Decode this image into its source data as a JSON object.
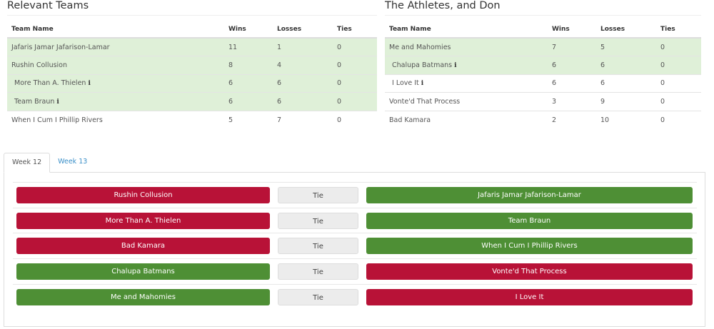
{
  "left": {
    "title": "Relevant Teams",
    "headers": [
      "Team Name",
      "Wins",
      "Losses",
      "Ties"
    ],
    "rows": [
      {
        "name": "Jafaris Jamar Jafarison-Lamar",
        "w": "11",
        "l": "1",
        "t": "0",
        "hl": true,
        "info": false
      },
      {
        "name": "Rushin Collusion",
        "w": "8",
        "l": "4",
        "t": "0",
        "hl": true,
        "info": false
      },
      {
        "name": "More Than A. Thielen",
        "w": "6",
        "l": "6",
        "t": "0",
        "hl": true,
        "info": true
      },
      {
        "name": "Team Braun",
        "w": "6",
        "l": "6",
        "t": "0",
        "hl": true,
        "info": true
      },
      {
        "name": "When I Cum I Phillip Rivers",
        "w": "5",
        "l": "7",
        "t": "0",
        "hl": false,
        "info": false
      }
    ]
  },
  "right": {
    "title": "The Athletes, and Don",
    "headers": [
      "Team Name",
      "Wins",
      "Losses",
      "Ties"
    ],
    "rows": [
      {
        "name": "Me and Mahomies",
        "w": "7",
        "l": "5",
        "t": "0",
        "hl": true,
        "info": false
      },
      {
        "name": "Chalupa Batmans",
        "w": "6",
        "l": "6",
        "t": "0",
        "hl": true,
        "info": true
      },
      {
        "name": "I Love It",
        "w": "6",
        "l": "6",
        "t": "0",
        "hl": false,
        "info": true
      },
      {
        "name": "Vonte'd That Process",
        "w": "3",
        "l": "9",
        "t": "0",
        "hl": false,
        "info": false
      },
      {
        "name": "Bad Kamara",
        "w": "2",
        "l": "10",
        "t": "0",
        "hl": false,
        "info": false
      }
    ]
  },
  "info_glyph": "i",
  "tabs": [
    {
      "label": "Week 12",
      "active": true
    },
    {
      "label": "Week 13",
      "active": false
    }
  ],
  "tie_label": "Tie",
  "colors": {
    "win": "#4e8f35",
    "loss": "#b81237",
    "highlight": "#dff0d8"
  },
  "matches": [
    {
      "home": "Rushin Collusion",
      "home_result": "loss",
      "away": "Jafaris Jamar Jafarison-Lamar",
      "away_result": "win"
    },
    {
      "home": "More Than A. Thielen",
      "home_result": "loss",
      "away": "Team Braun",
      "away_result": "win"
    },
    {
      "home": "Bad Kamara",
      "home_result": "loss",
      "away": "When I Cum I Phillip Rivers",
      "away_result": "win"
    },
    {
      "home": "Chalupa Batmans",
      "home_result": "win",
      "away": "Vonte'd That Process",
      "away_result": "loss"
    },
    {
      "home": "Me and Mahomies",
      "home_result": "win",
      "away": "I Love It",
      "away_result": "loss"
    }
  ]
}
